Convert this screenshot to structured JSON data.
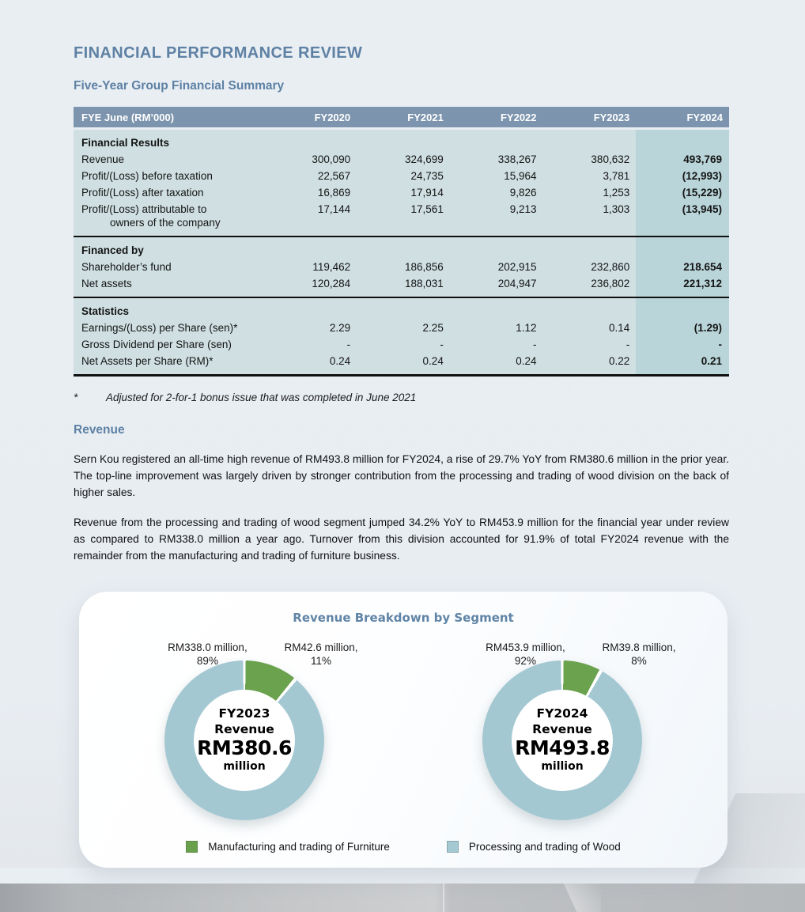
{
  "page": {
    "title": "FINANCIAL PERFORMANCE REVIEW",
    "subtitle": "Five-Year Group Financial Summary",
    "footnote_marker": "*",
    "footnote_text": "Adjusted for 2-for-1 bonus issue that was completed in June 2021",
    "section_heading": "Revenue",
    "paragraph_1": "Sern Kou registered an all-time high revenue of RM493.8 million for FY2024, a rise of 29.7% YoY from RM380.6 million in the prior year. The top-line improvement was largely driven by stronger contribution from the processing and trading of wood division on the back of higher sales.",
    "paragraph_2": "Revenue from the processing and trading of wood segment jumped 34.2% YoY to RM453.9 million for the financial year under review as compared to RM338.0 million a year ago. Turnover from this division accounted for 91.9% of total FY2024 revenue with the remainder from the manufacturing and trading of furniture business."
  },
  "table": {
    "header": [
      "FYE June (RM’000)",
      "FY2020",
      "FY2021",
      "FY2022",
      "FY2023",
      "FY2024"
    ],
    "sections": [
      {
        "title": "Financial Results",
        "rows": [
          {
            "label": "Revenue",
            "label2": "",
            "values": [
              "300,090",
              "324,699",
              "338,267",
              "380,632",
              "493,769"
            ]
          },
          {
            "label": "Profit/(Loss) before taxation",
            "label2": "",
            "values": [
              "22,567",
              "24,735",
              "15,964",
              "3,781",
              "(12,993)"
            ]
          },
          {
            "label": "Profit/(Loss) after taxation",
            "label2": "",
            "values": [
              "16,869",
              "17,914",
              "9,826",
              "1,253",
              "(15,229)"
            ]
          },
          {
            "label": "Profit/(Loss) attributable to",
            "label2": "owners of the company",
            "values": [
              "17,144",
              "17,561",
              "9,213",
              "1,303",
              "(13,945)"
            ]
          }
        ]
      },
      {
        "title": "Financed by",
        "rows": [
          {
            "label": "Shareholder’s fund",
            "label2": "",
            "values": [
              "119,462",
              "186,856",
              "202,915",
              "232,860",
              "218.654"
            ]
          },
          {
            "label": "Net assets",
            "label2": "",
            "values": [
              "120,284",
              "188,031",
              "204,947",
              "236,802",
              "221,312"
            ]
          }
        ]
      },
      {
        "title": "Statistics",
        "rows": [
          {
            "label": "Earnings/(Loss) per Share (sen)*",
            "label2": "",
            "values": [
              "2.29",
              "2.25",
              "1.12",
              "0.14",
              "(1.29)"
            ]
          },
          {
            "label": "Gross Dividend per Share (sen)",
            "label2": "",
            "values": [
              "-",
              "-",
              "-",
              "-",
              "-"
            ]
          },
          {
            "label": "Net Assets per Share (RM)*",
            "label2": "",
            "values": [
              "0.24",
              "0.24",
              "0.24",
              "0.22",
              "0.21"
            ]
          }
        ]
      }
    ]
  },
  "chart_card": {
    "title": "Revenue Breakdown by Segment",
    "charts": [
      {
        "label_left_line1": "RM338.0 million,",
        "label_left_line2": "89%",
        "label_right_line1": "RM42.6 million,",
        "label_right_line2": "11%",
        "center_line1": "FY2023",
        "center_line2": "Revenue",
        "center_line3": "RM380.6",
        "center_line4": "million",
        "furniture_pct": 11,
        "wood_pct": 89
      },
      {
        "label_left_line1": "RM453.9 million,",
        "label_left_line2": "92%",
        "label_right_line1": "RM39.8 million,",
        "label_right_line2": "8%",
        "center_line1": "FY2024",
        "center_line2": "Revenue",
        "center_line3": "RM493.8",
        "center_line4": "million",
        "furniture_pct": 8,
        "wood_pct": 92
      }
    ],
    "legend": [
      {
        "label": "Manufacturing and trading of Furniture",
        "color": "#68a04b"
      },
      {
        "label": "Processing and trading of Wood",
        "color": "#a5c9d3"
      }
    ]
  },
  "colors": {
    "accent_blue": "#5e81a4",
    "table_header_bg": "#7c94ad",
    "table_body_bg": "#cfdfe2",
    "table_highlight_bg": "#b9d5d9",
    "furniture_green": "#6ba24e",
    "wood_blue": "#a4c8d2",
    "page_bg": "#e8edf2"
  },
  "chart_data": [
    {
      "type": "pie",
      "title": "FY2023 Revenue RM380.6 million",
      "labels": [
        "Manufacturing and trading of Furniture",
        "Processing and trading of Wood"
      ],
      "values_rm_million": [
        42.6,
        338.0
      ],
      "percentages": [
        11,
        89
      ],
      "donut": true,
      "legend_position": "bottom"
    },
    {
      "type": "pie",
      "title": "FY2024 Revenue RM493.8 million",
      "labels": [
        "Manufacturing and trading of Furniture",
        "Processing and trading of Wood"
      ],
      "values_rm_million": [
        39.8,
        453.9
      ],
      "percentages": [
        8,
        92
      ],
      "donut": true,
      "legend_position": "bottom"
    }
  ]
}
